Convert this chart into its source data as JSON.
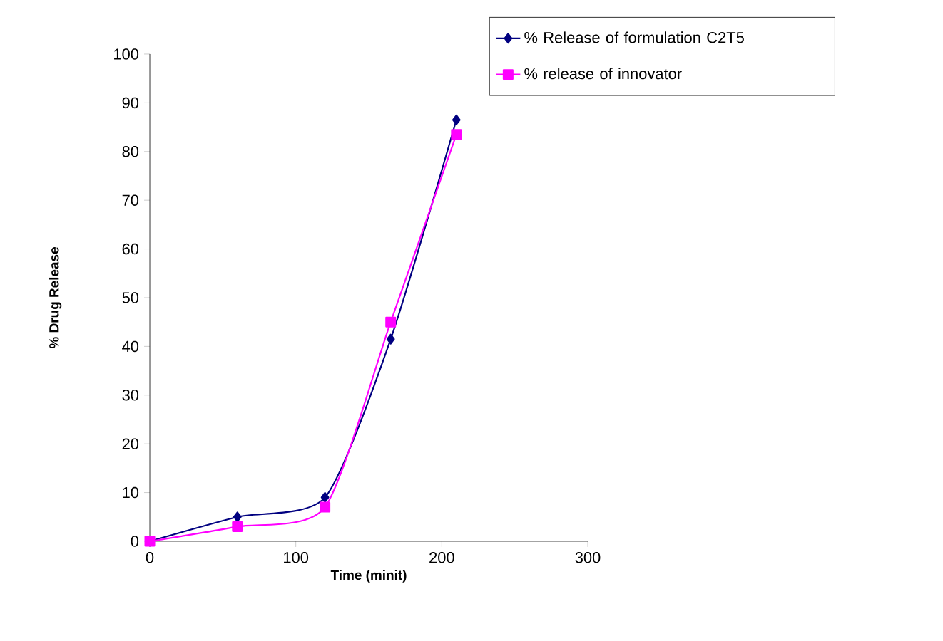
{
  "chart_data": {
    "type": "line",
    "xlabel": "Time (minit)",
    "ylabel": "% Drug Release",
    "x": [
      0,
      60,
      120,
      165,
      210
    ],
    "series": [
      {
        "name": "% Release of formulation C2T5",
        "color": "#000080",
        "marker": "diamond",
        "values": [
          0,
          5,
          9,
          41.5,
          86.5
        ]
      },
      {
        "name": "% release of innovator",
        "color": "#ff00ff",
        "marker": "square",
        "values": [
          0,
          3,
          7,
          45,
          83.5
        ]
      }
    ],
    "xlim": [
      0,
      300
    ],
    "xticks": [
      0,
      100,
      200,
      300
    ],
    "ylim": [
      0,
      100
    ],
    "yticks": [
      0,
      10,
      20,
      30,
      40,
      50,
      60,
      70,
      80,
      90,
      100
    ],
    "grid": false,
    "legend": "top right",
    "line_style": "solid"
  }
}
